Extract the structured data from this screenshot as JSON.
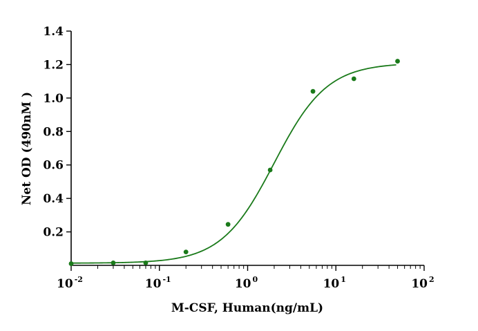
{
  "chart_data": {
    "type": "scatter",
    "title": "",
    "xlabel": "M-CSF, Human(ng/mL)",
    "ylabel": "Net OD (490nM )",
    "x_scale": "log",
    "xlim": [
      0.01,
      100
    ],
    "ylim": [
      0,
      1.4
    ],
    "x_ticks": [
      {
        "base": "10",
        "exp": "-2",
        "value": 0.01
      },
      {
        "base": "10",
        "exp": "-1",
        "value": 0.1
      },
      {
        "base": "10",
        "exp": "0",
        "value": 1
      },
      {
        "base": "10",
        "exp": "1",
        "value": 10
      },
      {
        "base": "10",
        "exp": "2",
        "value": 100
      }
    ],
    "y_ticks": [
      "0.2",
      "0.4",
      "0.6",
      "0.8",
      "1.0",
      "1.2",
      "1.4"
    ],
    "series": [
      {
        "points": [
          {
            "x": 0.01,
            "y": 0.01
          },
          {
            "x": 0.03,
            "y": 0.015
          },
          {
            "x": 0.07,
            "y": 0.015
          },
          {
            "x": 0.2,
            "y": 0.08
          },
          {
            "x": 0.6,
            "y": 0.245
          },
          {
            "x": 1.8,
            "y": 0.57
          },
          {
            "x": 5.5,
            "y": 1.04
          },
          {
            "x": 16,
            "y": 1.115
          },
          {
            "x": 50,
            "y": 1.22
          }
        ],
        "fit": {
          "bottom": 0.013,
          "top": 1.21,
          "ec50": 2.0,
          "hill": 1.45
        }
      }
    ],
    "colors": {
      "series": "#1a7a1a"
    },
    "grid": false,
    "legend": "none"
  }
}
